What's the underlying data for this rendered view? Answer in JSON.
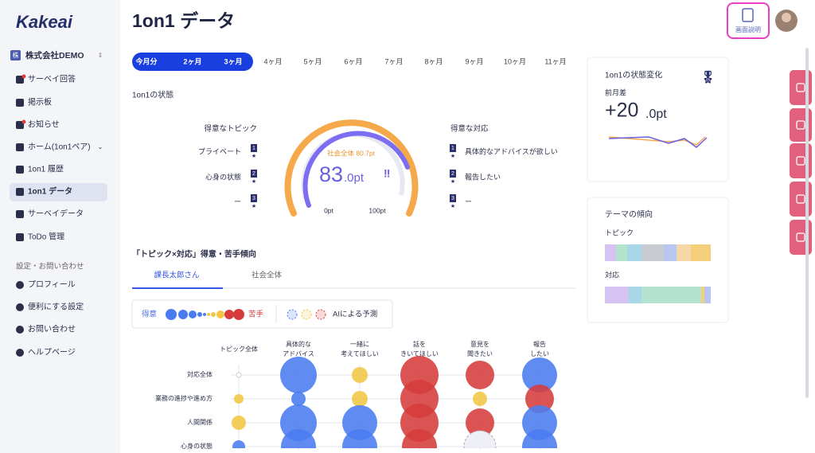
{
  "sidebar": {
    "logo": "Kakeai",
    "company_badge": "株",
    "company": "株式会社DEMO",
    "nav": [
      "サーベイ回答",
      "掲示板",
      "お知らせ",
      "ホーム(1on1ペア)",
      "1on1 履歴",
      "1on1 データ",
      "サーベイデータ",
      "ToDo 管理"
    ],
    "settings_heading": "設定・お問い合わせ",
    "settings": [
      "プロフィール",
      "便利にする設定",
      "お問い合わせ",
      "ヘルプページ"
    ]
  },
  "header": {
    "title": "1on1 データ",
    "help": "画面説明"
  },
  "period_tabs": [
    "今月分",
    "2ヶ月",
    "3ヶ月",
    "4ヶ月",
    "5ヶ月",
    "6ヶ月",
    "7ヶ月",
    "8ヶ月",
    "9ヶ月",
    "10ヶ月",
    "11ヶ月"
  ],
  "status": {
    "heading": "1on1の状態",
    "topics_heading": "得意なトピック",
    "topics": [
      {
        "rank": "1",
        "label": "プライベート"
      },
      {
        "rank": "2",
        "label": "心身の状態"
      },
      {
        "rank": "3",
        "label": "ー"
      }
    ],
    "score_caption": "社会全体 80.7pt",
    "score_main": "83",
    "score_sub": ".0pt",
    "min_label": "0pt",
    "max_label": "100pt",
    "responses_heading": "得意な対応",
    "responses": [
      {
        "rank": "1",
        "label": "具体的なアドバイスが欲しい"
      },
      {
        "rank": "2",
        "label": "報告したい"
      },
      {
        "rank": "3",
        "label": "ー"
      }
    ]
  },
  "tendency": {
    "heading": "「トピック×対応」得意・苦手傾向",
    "tabs": [
      "課長太郎さん",
      "社会全体"
    ],
    "legend": {
      "good": "得意",
      "bad": "苦手",
      "ai": "AIによる予測"
    },
    "columns": [
      [
        "トピック全体"
      ],
      [
        "具体的な",
        "アドバイス"
      ],
      [
        "一緒に",
        "考えてほしい"
      ],
      [
        "話を",
        "きいてほしい"
      ],
      [
        "意見を",
        "聞きたい"
      ],
      [
        "報告",
        "したい"
      ]
    ],
    "rows": [
      "対応全体",
      "業務の進捗や進め方",
      "人間関係",
      "心身の状態"
    ]
  },
  "change_card": {
    "title": "1on1の状態変化",
    "label": "前月差",
    "value_main": "+20",
    "value_sub": ".0pt"
  },
  "theme_card": {
    "title": "テーマの傾向",
    "topic_label": "トピック",
    "response_label": "対応"
  }
}
